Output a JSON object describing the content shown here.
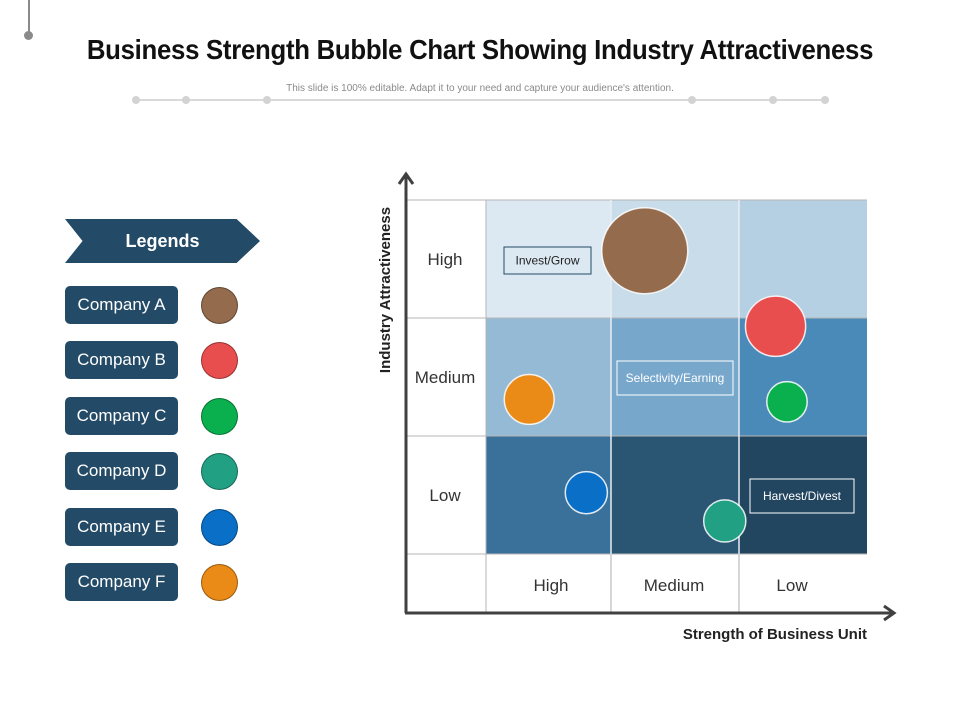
{
  "header": {
    "title": "Business Strength Bubble Chart Showing Industry Attractiveness",
    "subtitle": "This slide is 100% editable. Adapt it to your need and capture your audience's attention."
  },
  "legend": {
    "title": "Legends",
    "items": [
      {
        "label": "Company A",
        "color": "#946b4c"
      },
      {
        "label": "Company B",
        "color": "#e84e4e"
      },
      {
        "label": "Company C",
        "color": "#0ab04e"
      },
      {
        "label": "Company D",
        "color": "#22a084"
      },
      {
        "label": "Company E",
        "color": "#0a6fc6"
      },
      {
        "label": "Company F",
        "color": "#ea8a17"
      }
    ]
  },
  "chart_data": {
    "type": "scatter",
    "subtype": "bubble-matrix",
    "title": "Business Strength Bubble Chart Showing Industry Attractiveness",
    "xlabel": "Strength of Business Unit",
    "ylabel": "Industry Attractiveness",
    "x_categories": [
      "High",
      "Medium",
      "Low"
    ],
    "y_categories": [
      "High",
      "Medium",
      "Low"
    ],
    "x_range": [
      0,
      3
    ],
    "y_range": [
      0,
      3
    ],
    "grid": true,
    "legend_position": "left",
    "zones": [
      {
        "label": "Invest/Grow",
        "x_category": "High",
        "y_category": "High"
      },
      {
        "label": "Selectivity/Earning",
        "x_category": "Medium",
        "y_category": "Medium"
      },
      {
        "label": "Harvest/Divest",
        "x_category": "Low",
        "y_category": "Low"
      }
    ],
    "cell_colors": [
      [
        "#dde9f2",
        "#c8dcea",
        "#b6d0e3"
      ],
      [
        "#95bad6",
        "#78a7cc",
        "#4a8ab8"
      ],
      [
        "#3a719a",
        "#2a5573",
        "#22465f"
      ]
    ],
    "series": [
      {
        "name": "Company A",
        "color": "#946b4c",
        "x": 1.25,
        "y": 2.57,
        "size": 1.0
      },
      {
        "name": "Company B",
        "color": "#e84e4e",
        "x": 2.28,
        "y": 1.93,
        "size": 0.7
      },
      {
        "name": "Company C",
        "color": "#0ab04e",
        "x": 2.37,
        "y": 1.29,
        "size": 0.47
      },
      {
        "name": "Company D",
        "color": "#22a084",
        "x": 1.88,
        "y": 0.28,
        "size": 0.49
      },
      {
        "name": "Company E",
        "color": "#0a6fc6",
        "x": 0.79,
        "y": 0.52,
        "size": 0.49
      },
      {
        "name": "Company F",
        "color": "#ea8a17",
        "x": 0.34,
        "y": 1.31,
        "size": 0.58
      }
    ]
  }
}
